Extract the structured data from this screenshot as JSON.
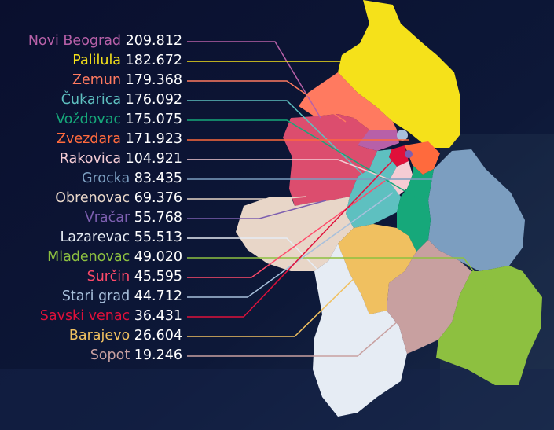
{
  "districts": [
    {
      "name": "Novi Beograd",
      "value": "209.812",
      "color": "#b760a8"
    },
    {
      "name": "Palilula",
      "value": "182.672",
      "color": "#f5e11a"
    },
    {
      "name": "Zemun",
      "value": "179.368",
      "color": "#ff7a60"
    },
    {
      "name": "Čukarica",
      "value": "176.092",
      "color": "#5ec0c0"
    },
    {
      "name": "Voždovac",
      "value": "175.075",
      "color": "#16a87a"
    },
    {
      "name": "Zvezdara",
      "value": "171.923",
      "color": "#ff6a3d"
    },
    {
      "name": "Rakovica",
      "value": "104.921",
      "color": "#f5ccd4"
    },
    {
      "name": "Grocka",
      "value": "83.435",
      "color": "#7c9ec0"
    },
    {
      "name": "Obrenovac",
      "value": "69.376",
      "color": "#e8d6c8"
    },
    {
      "name": "Vračar",
      "value": "55.768",
      "color": "#7d5fb0"
    },
    {
      "name": "Lazarevac",
      "value": "55.513",
      "color": "#e6ecf4"
    },
    {
      "name": "Mladenovac",
      "value": "49.020",
      "color": "#8dc040"
    },
    {
      "name": "Surčin",
      "value": "45.595",
      "color": "#ff4a6a"
    },
    {
      "name": "Stari grad",
      "value": "44.712",
      "color": "#a8c0dc"
    },
    {
      "name": "Savski venac",
      "value": "36.431",
      "color": "#e0103a"
    },
    {
      "name": "Barajevo",
      "value": "26.604",
      "color": "#f0c060"
    },
    {
      "name": "Sopot",
      "value": "19.246",
      "color": "#c8a0a0"
    }
  ]
}
